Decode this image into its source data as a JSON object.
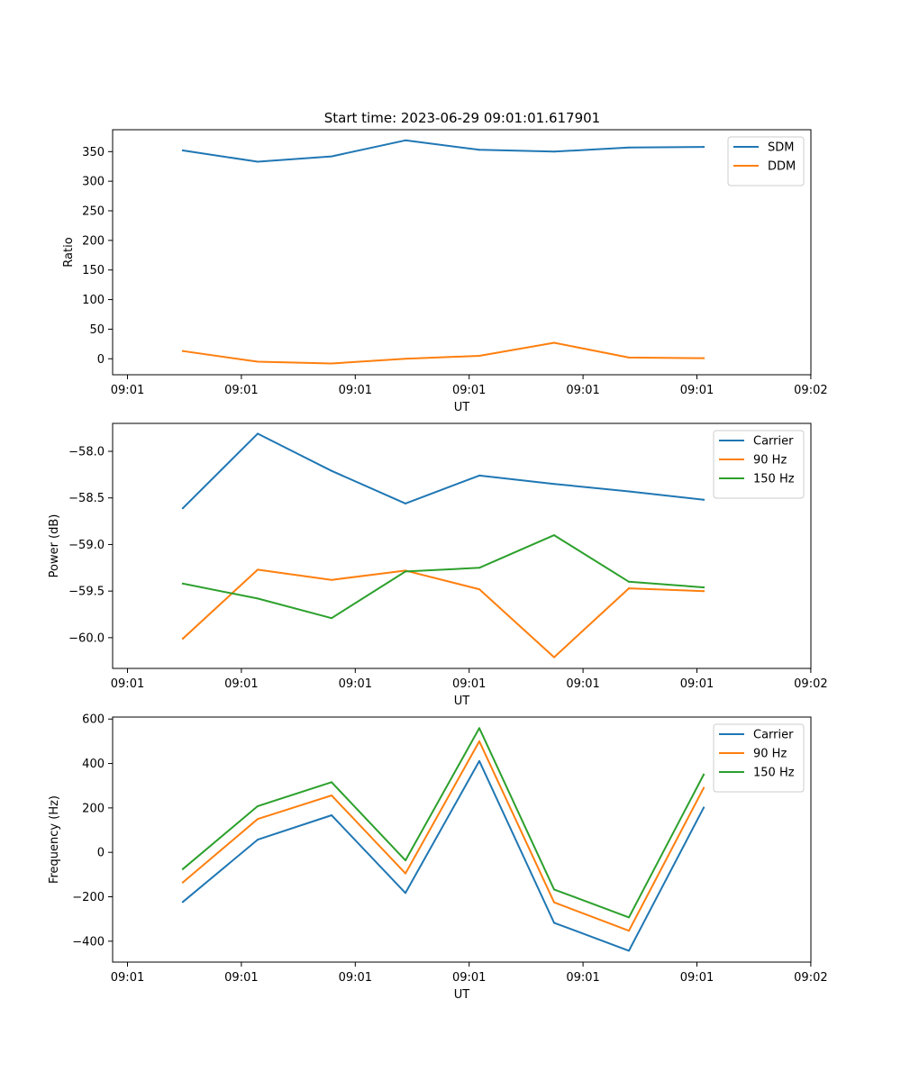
{
  "figure": {
    "title": "Start time: 2023-06-29 09:01:01.617901"
  },
  "chart_data": [
    {
      "type": "line",
      "title": "Start time: 2023-06-29 09:01:01.617901",
      "xlabel": "UT",
      "ylabel": "Ratio",
      "x_ticks": [
        "09:01",
        "09:01",
        "09:01",
        "09:01",
        "09:01",
        "09:01",
        "09:02"
      ],
      "y_ticks": [
        0,
        50,
        100,
        150,
        200,
        250,
        300,
        350
      ],
      "ylim": [
        -27,
        387
      ],
      "grid": false,
      "legend_position": "top-right",
      "series": [
        {
          "name": "SDM",
          "color": "#1f77b4",
          "values": [
            352,
            333,
            342,
            369,
            353,
            350,
            357,
            358
          ]
        },
        {
          "name": "DDM",
          "color": "#ff7f0e",
          "values": [
            13,
            -5,
            -8,
            0,
            5,
            27,
            2,
            1
          ]
        }
      ]
    },
    {
      "type": "line",
      "title": "",
      "xlabel": "UT",
      "ylabel": "Power (dB)",
      "x_ticks": [
        "09:01",
        "09:01",
        "09:01",
        "09:01",
        "09:01",
        "09:01",
        "09:02"
      ],
      "y_ticks": [
        -60.0,
        -59.5,
        -59.0,
        -58.5,
        -58.0
      ],
      "y_tick_labels": [
        "−60.0",
        "−59.5",
        "−59.0",
        "−58.5",
        "−58.0"
      ],
      "ylim": [
        -60.33,
        -57.7
      ],
      "grid": false,
      "legend_position": "top-right",
      "series": [
        {
          "name": "Carrier",
          "color": "#1f77b4",
          "values": [
            -58.61,
            -57.81,
            -58.21,
            -58.56,
            -58.26,
            -58.35,
            -58.43,
            -58.52
          ]
        },
        {
          "name": "90 Hz",
          "color": "#ff7f0e",
          "values": [
            -60.01,
            -59.27,
            -59.38,
            -59.28,
            -59.48,
            -60.21,
            -59.47,
            -59.5
          ]
        },
        {
          "name": "150 Hz",
          "color": "#2ca02c",
          "values": [
            -59.42,
            -59.58,
            -59.79,
            -59.29,
            -59.25,
            -58.9,
            -59.4,
            -59.46
          ]
        }
      ]
    },
    {
      "type": "line",
      "title": "",
      "xlabel": "UT",
      "ylabel": "Frequency (Hz)",
      "x_ticks": [
        "09:01",
        "09:01",
        "09:01",
        "09:01",
        "09:01",
        "09:01",
        "09:02"
      ],
      "y_ticks": [
        -400,
        -200,
        0,
        200,
        400,
        600
      ],
      "y_tick_labels": [
        "−400",
        "−200",
        "0",
        "200",
        "400",
        "600"
      ],
      "ylim": [
        -494,
        609
      ],
      "grid": false,
      "legend_position": "top-right",
      "series": [
        {
          "name": "Carrier",
          "color": "#1f77b4",
          "values": [
            -223,
            57,
            167,
            -183,
            411,
            -317,
            -443,
            201
          ]
        },
        {
          "name": "90 Hz",
          "color": "#ff7f0e",
          "values": [
            -135,
            150,
            256,
            -95,
            500,
            -225,
            -353,
            290
          ]
        },
        {
          "name": "150 Hz",
          "color": "#2ca02c",
          "values": [
            -75,
            208,
            316,
            -36,
            559,
            -167,
            -293,
            350
          ]
        }
      ]
    }
  ]
}
